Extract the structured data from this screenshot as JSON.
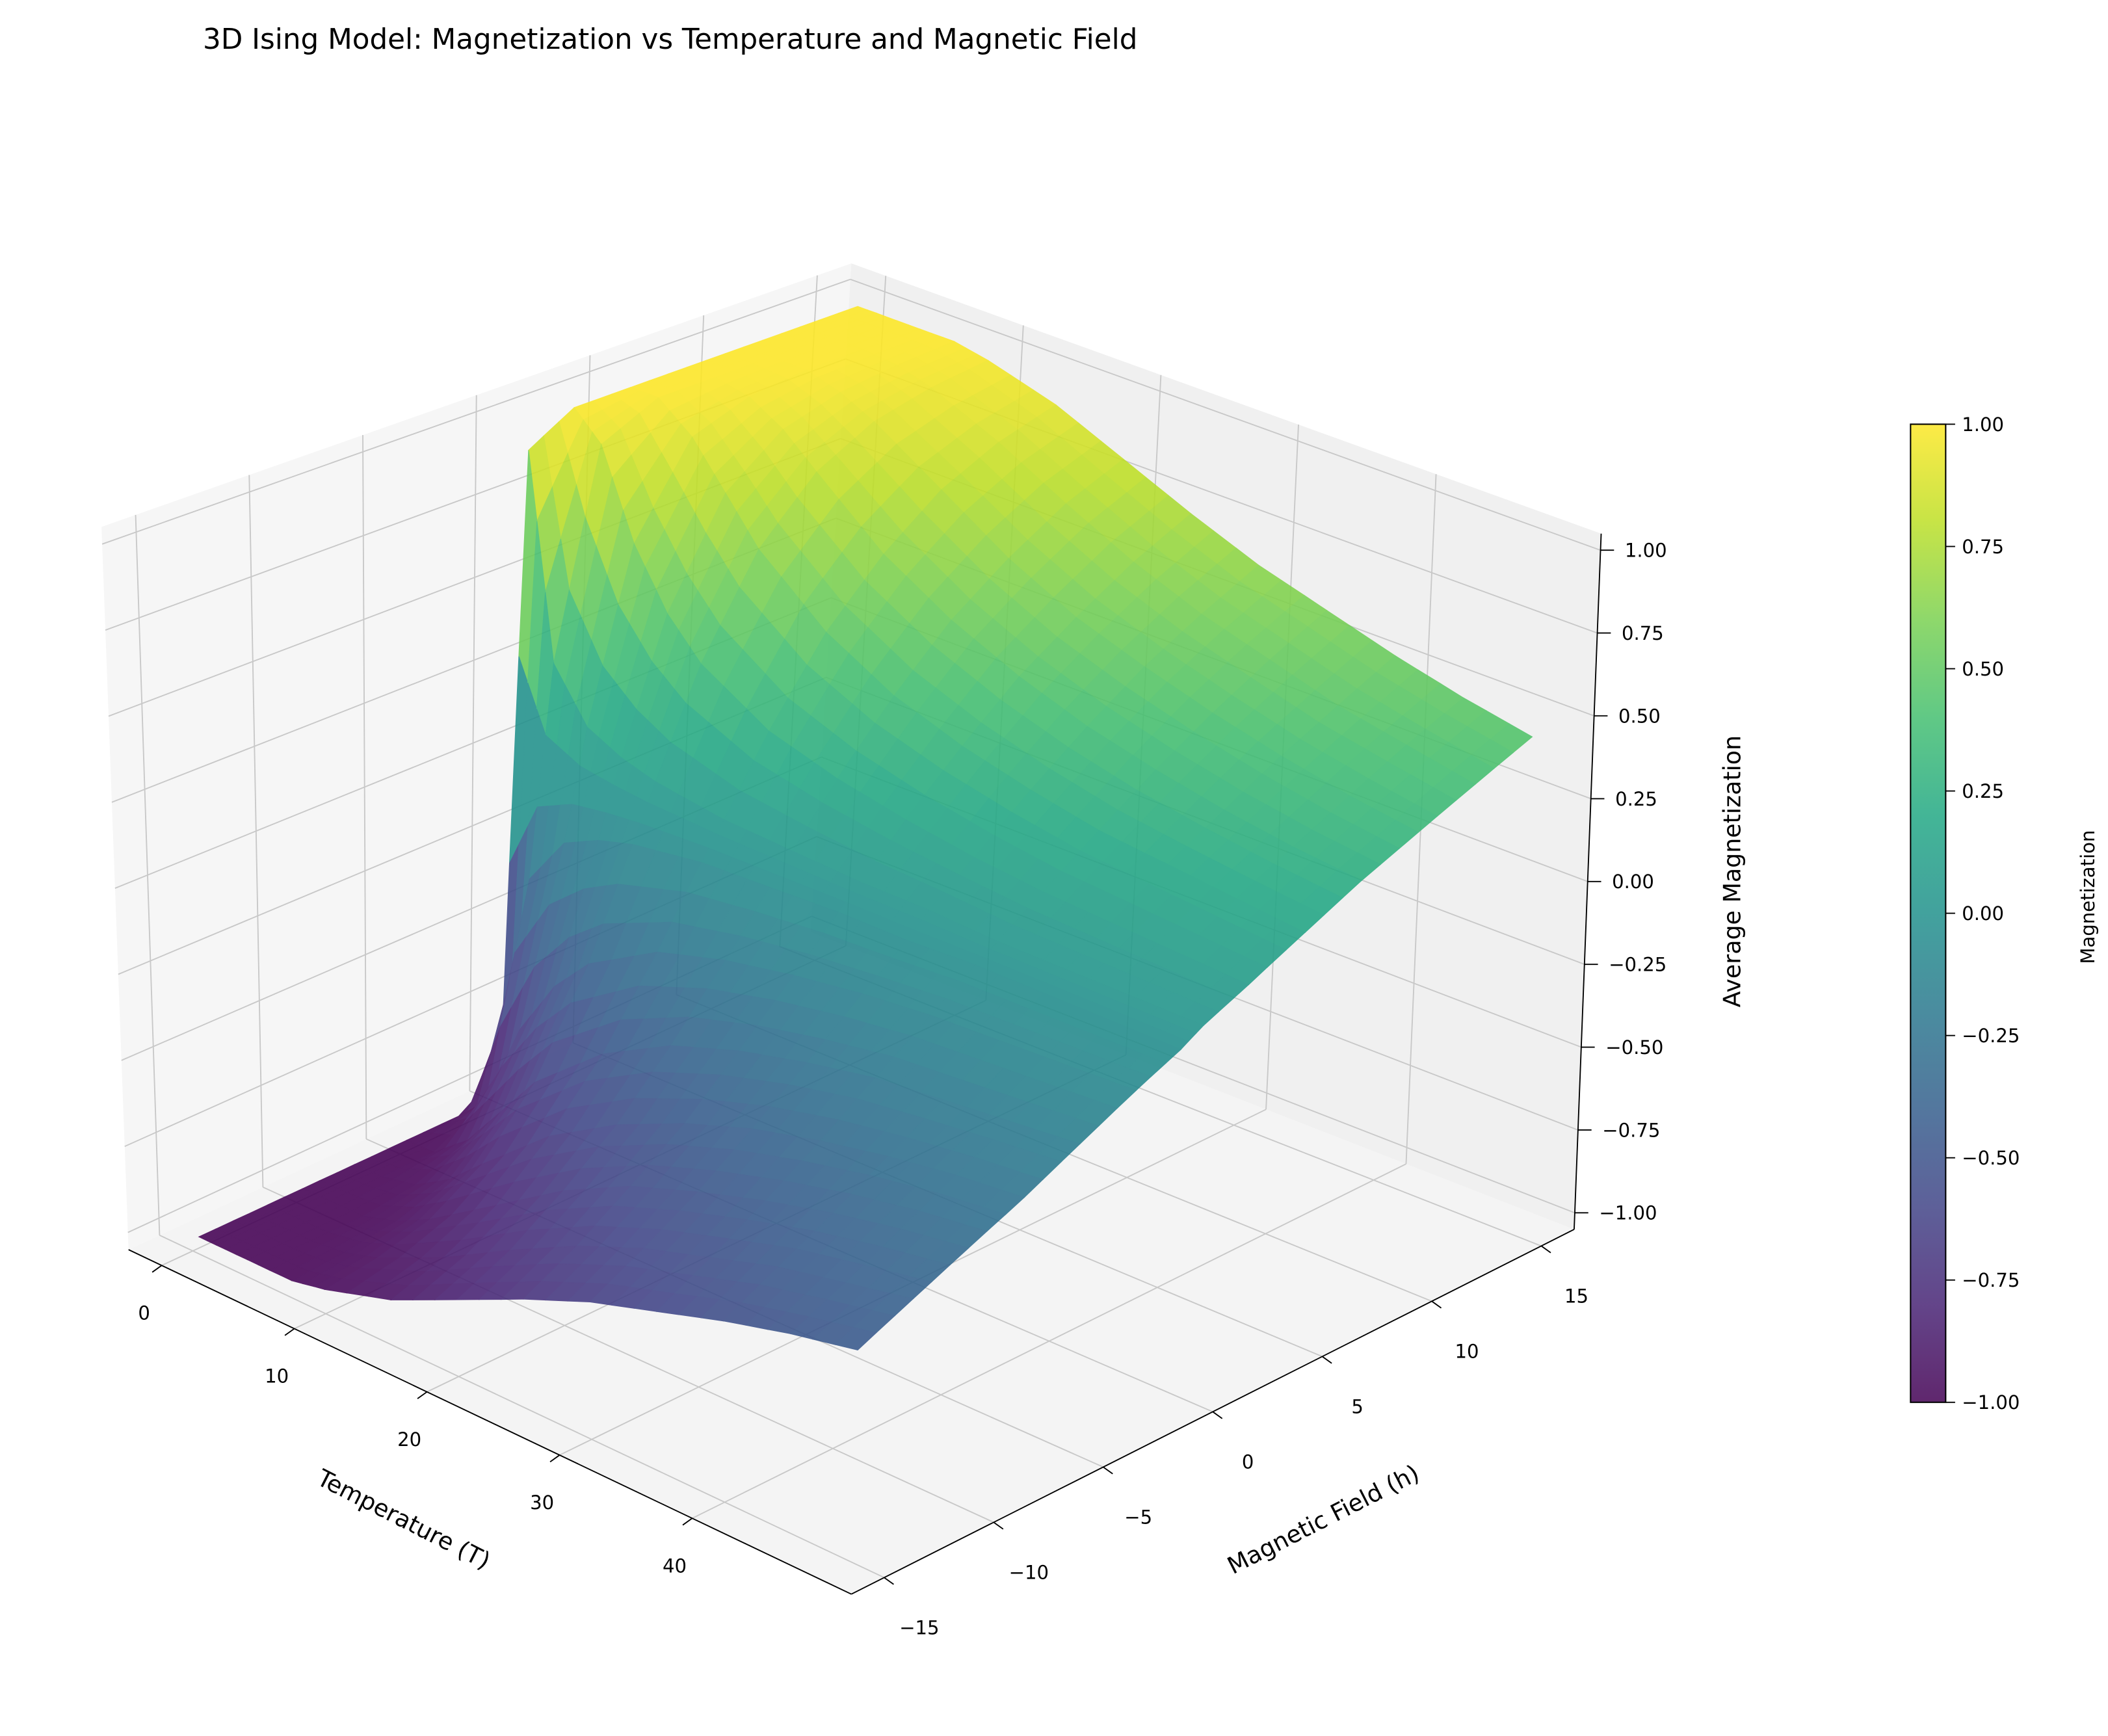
{
  "chart_data": {
    "type": "surface3d",
    "title": "3D Ising Model: Magnetization vs Temperature and Magnetic Field",
    "xlabel": "Temperature (T)",
    "ylabel": "Magnetic Field (h)",
    "zlabel": "Average Magnetization",
    "colorbar_label": "Magnetization",
    "colormap": "viridis",
    "colormap_stops": [
      "#440154",
      "#482475",
      "#414487",
      "#355f8d",
      "#2a788e",
      "#21918c",
      "#22a884",
      "#44bf70",
      "#7ad151",
      "#bddf26",
      "#fde725"
    ],
    "grid": true,
    "xlim": [
      -2.5,
      52
    ],
    "ylim": [
      -16.5,
      16.5
    ],
    "zlim": [
      -1.05,
      1.05
    ],
    "x_ticks": [
      "0",
      "10",
      "20",
      "30",
      "40"
    ],
    "x_tick_values": [
      0,
      10,
      20,
      30,
      40
    ],
    "y_ticks": [
      "−15",
      "−10",
      "−5",
      "0",
      "5",
      "10",
      "15"
    ],
    "y_tick_values": [
      -15,
      -10,
      -5,
      0,
      5,
      10,
      15
    ],
    "z_ticks": [
      "−1.00",
      "−0.75",
      "−0.50",
      "−0.25",
      "0.00",
      "0.25",
      "0.50",
      "0.75",
      "1.00"
    ],
    "z_tick_values": [
      -1,
      -0.75,
      -0.5,
      -0.25,
      0,
      0.25,
      0.5,
      0.75,
      1
    ],
    "colorbar_ticks": [
      "−1.00",
      "−0.75",
      "−0.50",
      "−0.25",
      "0.00",
      "0.25",
      "0.50",
      "0.75",
      "1.00"
    ],
    "colorbar_tick_values": [
      -1,
      -0.75,
      -0.5,
      -0.25,
      0,
      0.25,
      0.5,
      0.75,
      1
    ],
    "T": [
      0.5,
      2.5,
      5,
      7.5,
      10,
      15,
      20,
      25,
      30,
      35,
      40,
      45,
      50
    ],
    "h": [
      -15,
      -12.5,
      -10,
      -7.5,
      -5,
      -2.5,
      -0.5,
      0.5,
      2.5,
      5,
      7.5,
      10,
      12.5,
      15
    ],
    "M": [
      [
        -1.0,
        -1.0,
        -1.0,
        -1.0,
        -1.0,
        -1.0,
        -0.92,
        0.92,
        1.0,
        1.0,
        1.0,
        1.0,
        1.0,
        1.0
      ],
      [
        -1.0,
        -1.0,
        -1.0,
        -1.0,
        -1.0,
        -0.92,
        -0.31,
        0.31,
        0.92,
        1.0,
        1.0,
        1.0,
        1.0,
        1.0
      ],
      [
        -1.0,
        -1.0,
        -1.0,
        -0.98,
        -0.92,
        -0.66,
        -0.16,
        0.16,
        0.66,
        0.92,
        0.98,
        1.0,
        1.0,
        1.0
      ],
      [
        -1.0,
        -0.99,
        -0.97,
        -0.92,
        -0.79,
        -0.49,
        -0.11,
        0.11,
        0.49,
        0.79,
        0.92,
        0.97,
        0.99,
        1.0
      ],
      [
        -0.98,
        -0.96,
        -0.92,
        -0.83,
        -0.66,
        -0.38,
        -0.08,
        0.08,
        0.38,
        0.66,
        0.83,
        0.92,
        0.96,
        0.98
      ],
      [
        -0.92,
        -0.87,
        -0.79,
        -0.66,
        -0.49,
        -0.26,
        -0.05,
        0.05,
        0.26,
        0.49,
        0.66,
        0.79,
        0.87,
        0.92
      ],
      [
        -0.83,
        -0.76,
        -0.66,
        -0.54,
        -0.38,
        -0.2,
        -0.04,
        0.04,
        0.2,
        0.38,
        0.54,
        0.66,
        0.76,
        0.83
      ],
      [
        -0.74,
        -0.66,
        -0.56,
        -0.45,
        -0.31,
        -0.16,
        -0.03,
        0.03,
        0.16,
        0.31,
        0.45,
        0.56,
        0.66,
        0.74
      ],
      [
        -0.66,
        -0.58,
        -0.49,
        -0.38,
        -0.26,
        -0.13,
        -0.03,
        0.03,
        0.13,
        0.26,
        0.38,
        0.49,
        0.58,
        0.66
      ],
      [
        -0.6,
        -0.52,
        -0.43,
        -0.33,
        -0.22,
        -0.11,
        -0.02,
        0.02,
        0.11,
        0.22,
        0.33,
        0.43,
        0.52,
        0.6
      ],
      [
        -0.54,
        -0.46,
        -0.38,
        -0.29,
        -0.2,
        -0.1,
        -0.02,
        0.02,
        0.1,
        0.2,
        0.29,
        0.38,
        0.46,
        0.54
      ],
      [
        -0.49,
        -0.42,
        -0.34,
        -0.26,
        -0.18,
        -0.09,
        -0.02,
        0.02,
        0.09,
        0.18,
        0.26,
        0.34,
        0.42,
        0.49
      ],
      [
        -0.45,
        -0.38,
        -0.31,
        -0.24,
        -0.16,
        -0.08,
        -0.02,
        0.02,
        0.08,
        0.16,
        0.24,
        0.31,
        0.38,
        0.45
      ]
    ]
  }
}
